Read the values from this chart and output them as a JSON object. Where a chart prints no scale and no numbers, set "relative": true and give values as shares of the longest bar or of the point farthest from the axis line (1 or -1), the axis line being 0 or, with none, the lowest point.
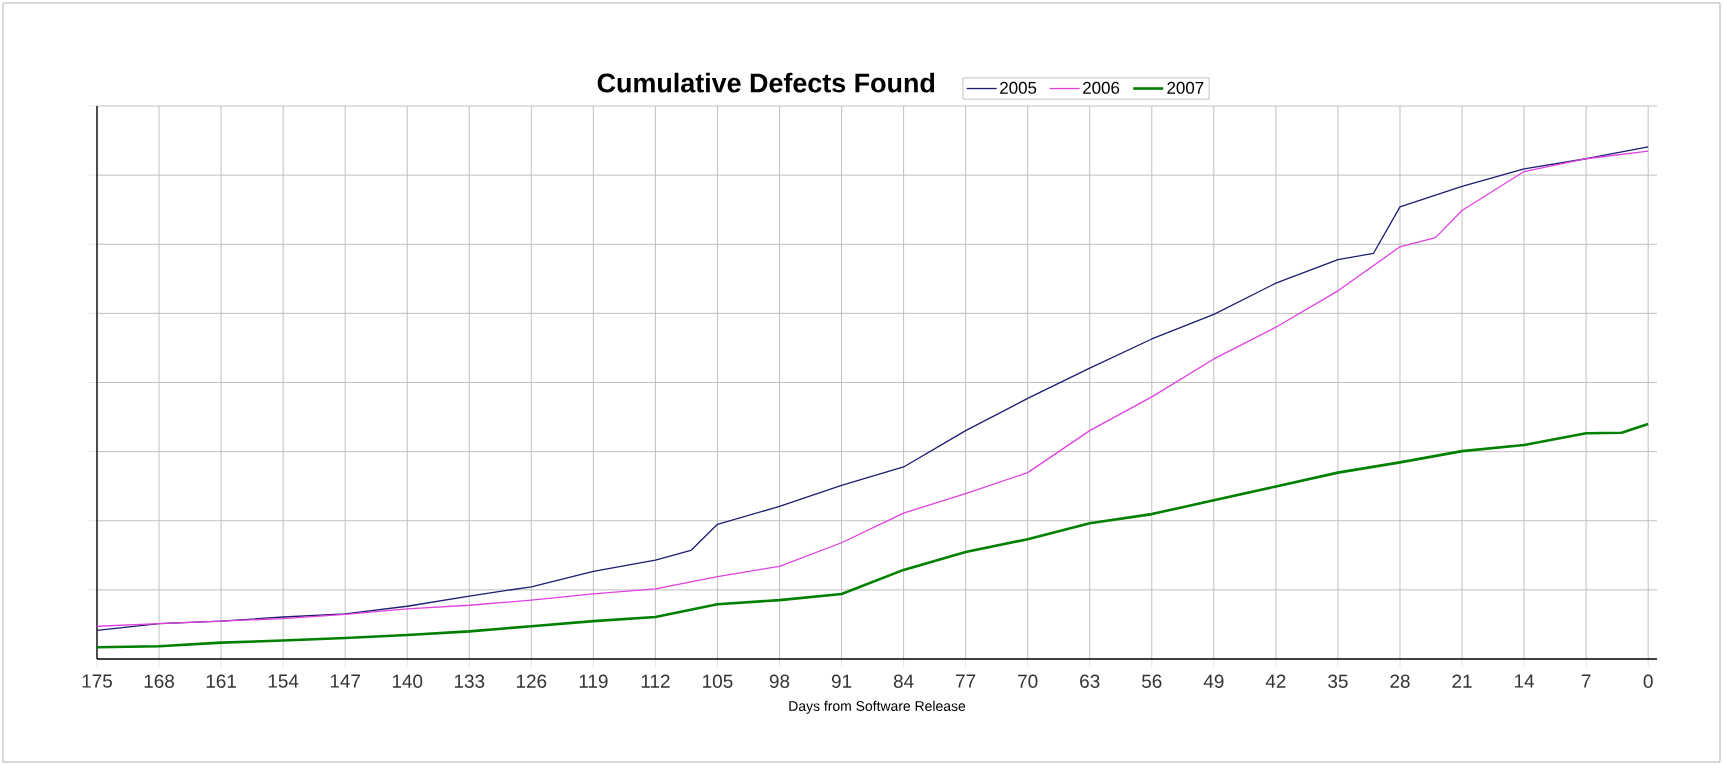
{
  "chart_data": {
    "type": "line",
    "title": "Cumulative Defects Found",
    "xlabel": "Days from Software Release",
    "relative": true,
    "grid": true,
    "legend": "top",
    "line_style": "solid",
    "xlim": [
      175,
      -1
    ],
    "xticks": [
      175,
      168,
      161,
      154,
      147,
      140,
      133,
      126,
      119,
      112,
      105,
      98,
      91,
      84,
      77,
      70,
      63,
      56,
      49,
      42,
      35,
      28,
      21,
      14,
      7,
      0
    ],
    "series": [
      {
        "name": "2005",
        "color": "#1c1c70",
        "x": [
          175,
          168,
          161,
          154,
          147,
          140,
          133,
          126,
          119,
          112,
          108,
          105,
          98,
          91,
          84,
          77,
          70,
          63,
          56,
          49,
          42,
          35,
          31,
          28,
          21,
          14,
          7,
          0
        ],
        "values": [
          0.056,
          0.069,
          0.074,
          0.082,
          0.088,
          0.103,
          0.123,
          0.141,
          0.171,
          0.193,
          0.212,
          0.263,
          0.298,
          0.339,
          0.375,
          0.446,
          0.509,
          0.568,
          0.625,
          0.673,
          0.734,
          0.78,
          0.792,
          0.883,
          0.923,
          0.957,
          0.977,
          1.0
        ]
      },
      {
        "name": "2006",
        "color": "#e040e0",
        "x": [
          175,
          168,
          161,
          154,
          147,
          140,
          133,
          126,
          119,
          112,
          105,
          98,
          91,
          84,
          77,
          70,
          63,
          56,
          49,
          42,
          35,
          28,
          24,
          21,
          14,
          7,
          0
        ],
        "values": [
          0.064,
          0.069,
          0.074,
          0.079,
          0.087,
          0.098,
          0.105,
          0.115,
          0.127,
          0.137,
          0.161,
          0.181,
          0.227,
          0.285,
          0.323,
          0.364,
          0.446,
          0.512,
          0.586,
          0.648,
          0.719,
          0.805,
          0.823,
          0.876,
          0.952,
          0.977,
          0.992
        ]
      },
      {
        "name": "2007",
        "color": "#008000",
        "x": [
          175,
          168,
          161,
          154,
          147,
          140,
          133,
          126,
          119,
          112,
          105,
          98,
          91,
          84,
          77,
          70,
          63,
          56,
          49,
          42,
          35,
          28,
          21,
          14,
          7,
          3,
          0
        ],
        "values": [
          0.023,
          0.025,
          0.032,
          0.036,
          0.041,
          0.047,
          0.054,
          0.064,
          0.074,
          0.082,
          0.107,
          0.115,
          0.127,
          0.174,
          0.209,
          0.234,
          0.265,
          0.283,
          0.31,
          0.337,
          0.364,
          0.384,
          0.406,
          0.418,
          0.441,
          0.442,
          0.459
        ]
      }
    ]
  }
}
